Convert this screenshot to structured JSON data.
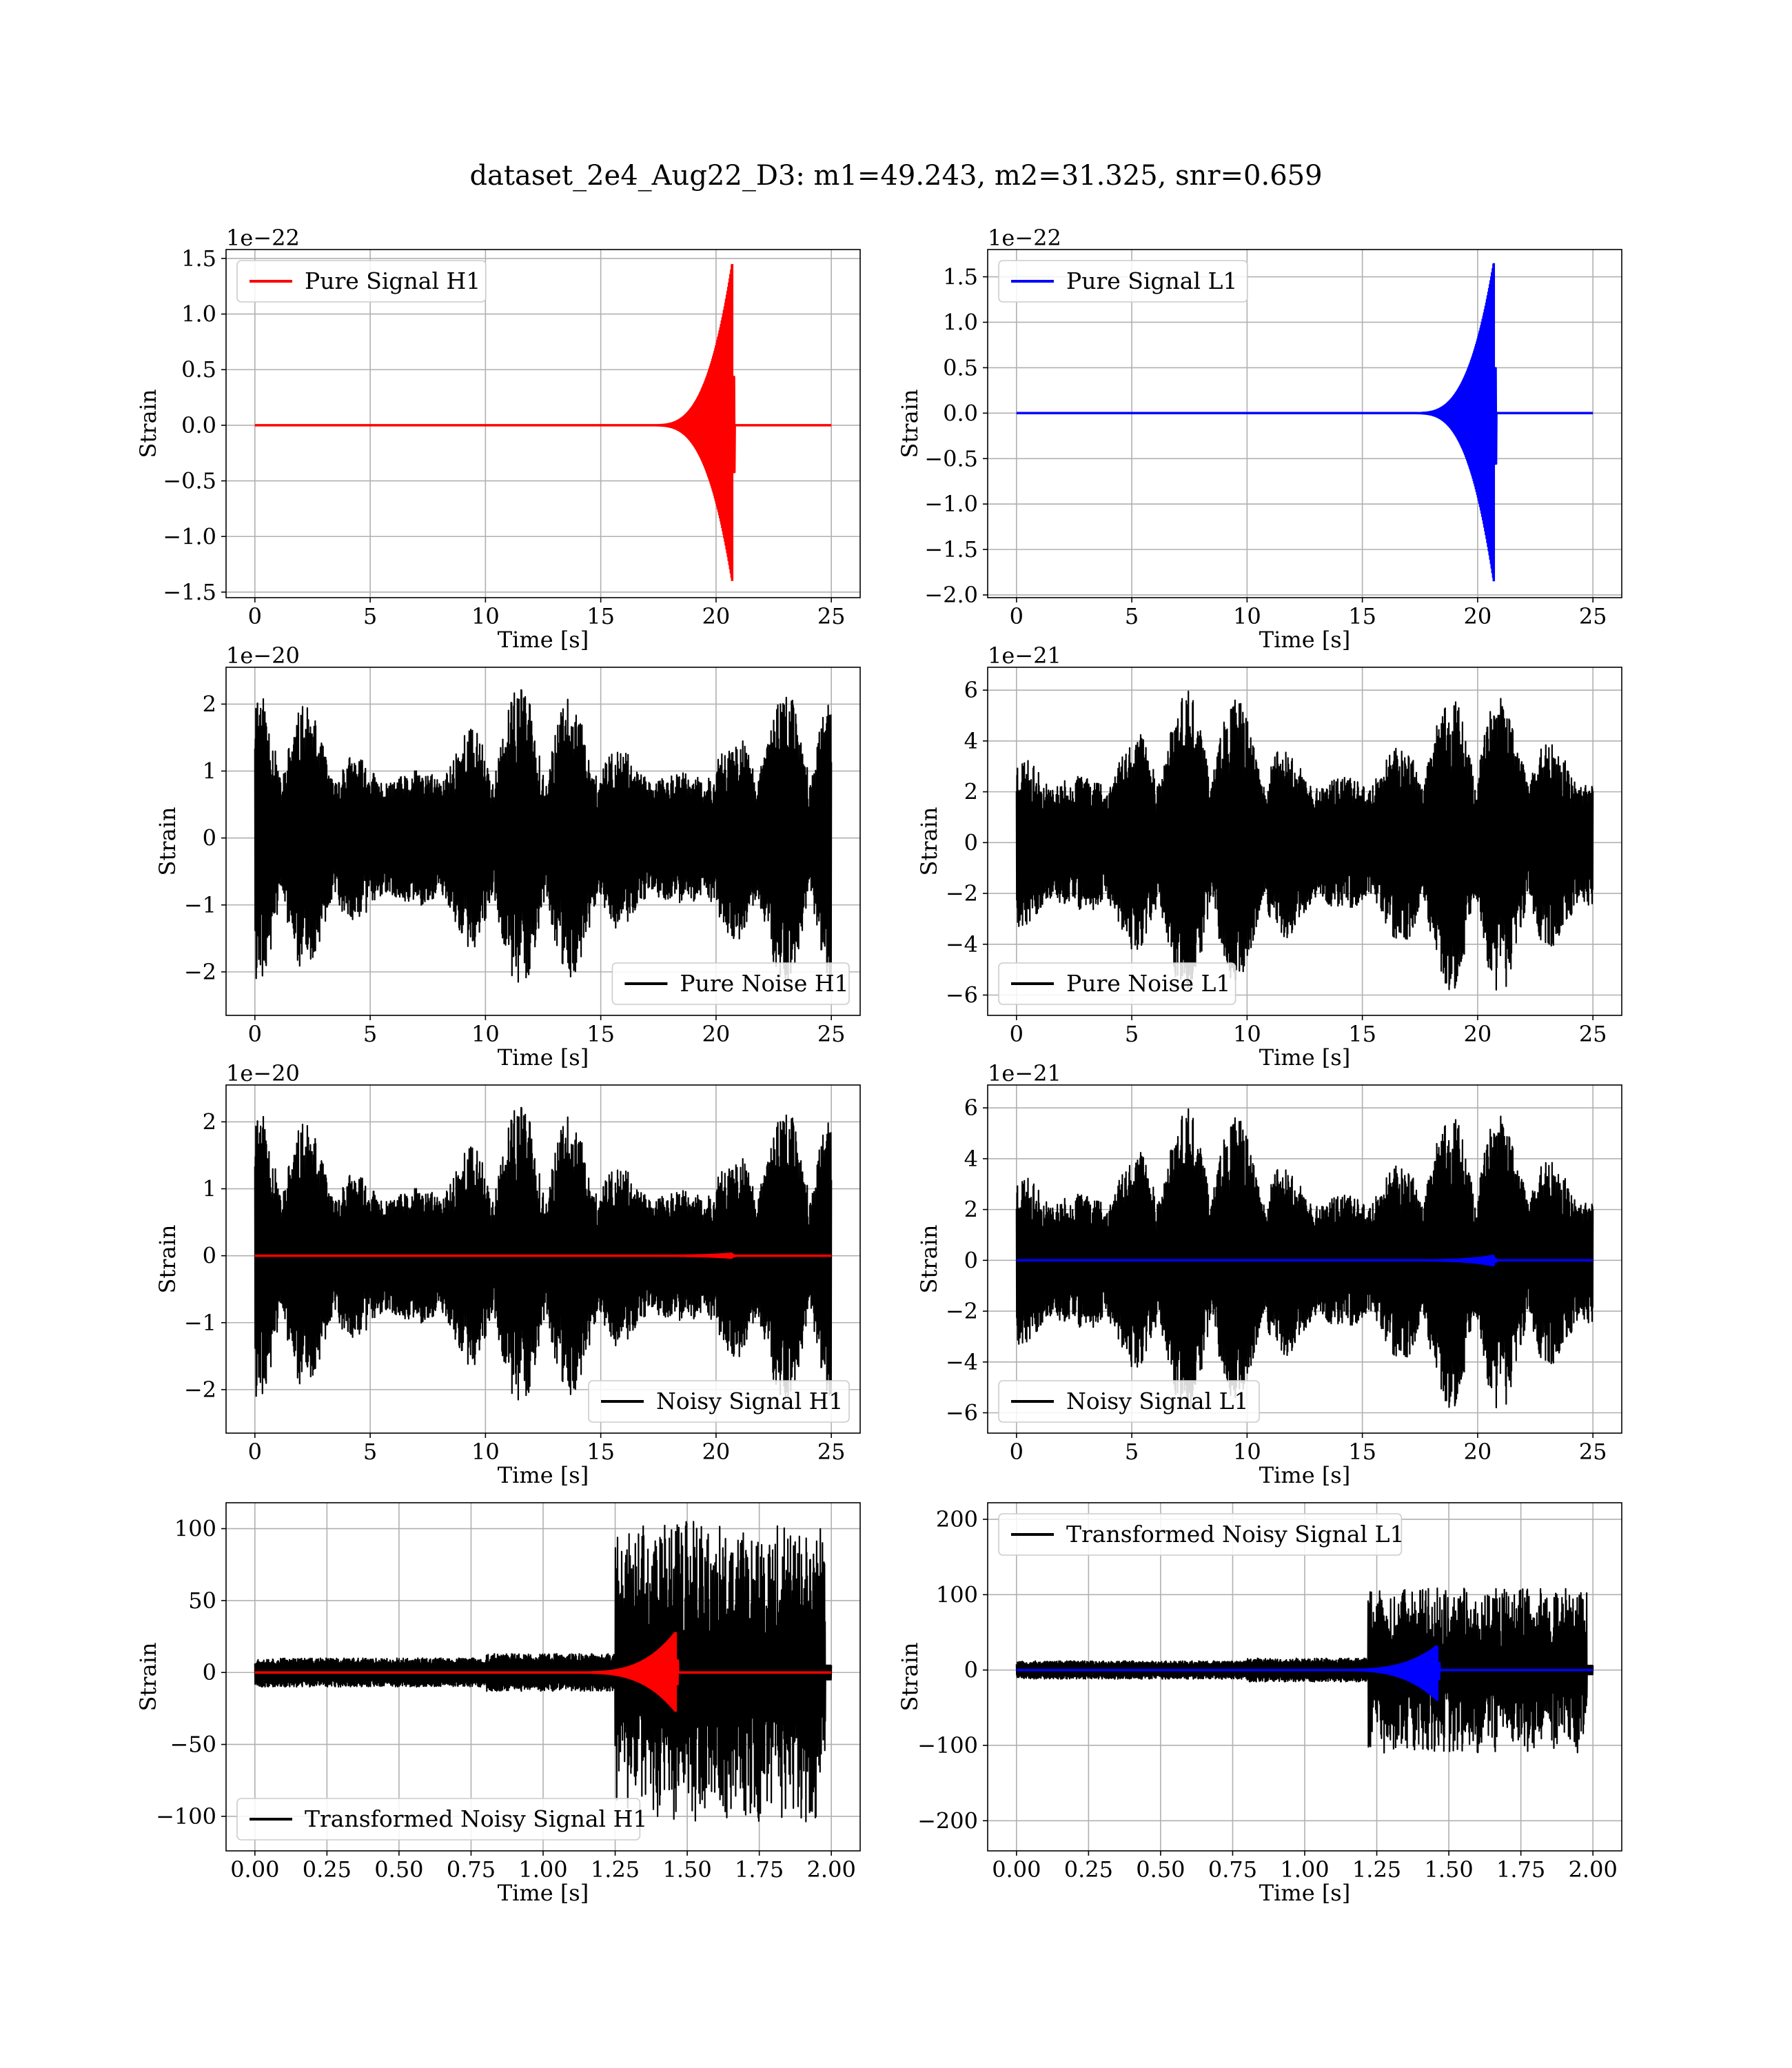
{
  "figure_title": "dataset_2e4_Aug22_D3: m1=49.243, m2=31.325, snr=0.659",
  "colors": {
    "h1_signal": "#ff0000",
    "l1_signal": "#0000ff",
    "noise": "#000000",
    "grid": "#b0b0b0"
  },
  "chart_data": [
    {
      "id": "pure-signal-h1",
      "type": "line",
      "xlabel": "Time [s]",
      "ylabel": "Strain",
      "offset": "1e−22",
      "xlim": [
        -1.25,
        26.25
      ],
      "ylim": [
        -1.55,
        1.58
      ],
      "xticks": [
        0,
        5,
        10,
        15,
        20,
        25
      ],
      "xtick_labels": [
        "0",
        "5",
        "10",
        "15",
        "20",
        "25"
      ],
      "yticks": [
        -1.5,
        -1.0,
        -0.5,
        0.0,
        0.5,
        1.0,
        1.5
      ],
      "ytick_labels": [
        "−1.5",
        "−1.0",
        "−0.5",
        "0.0",
        "0.5",
        "1.0",
        "1.5"
      ],
      "legend": "upper-left",
      "series": [
        {
          "name": "Pure Signal H1",
          "color": "#ff0000",
          "kind": "chirp",
          "x_start": 0,
          "x_end": 25,
          "merger_x": 20.7,
          "peak_max": 1.45,
          "peak_min": -1.4
        }
      ]
    },
    {
      "id": "pure-signal-l1",
      "type": "line",
      "xlabel": "Time [s]",
      "ylabel": "Strain",
      "offset": "1e−22",
      "xlim": [
        -1.25,
        26.25
      ],
      "ylim": [
        -2.03,
        1.8
      ],
      "xticks": [
        0,
        5,
        10,
        15,
        20,
        25
      ],
      "xtick_labels": [
        "0",
        "5",
        "10",
        "15",
        "20",
        "25"
      ],
      "yticks": [
        -2.0,
        -1.5,
        -1.0,
        -0.5,
        0.0,
        0.5,
        1.0,
        1.5
      ],
      "ytick_labels": [
        "−2.0",
        "−1.5",
        "−1.0",
        "−0.5",
        "0.0",
        "0.5",
        "1.0",
        "1.5"
      ],
      "legend": "upper-left",
      "series": [
        {
          "name": "Pure Signal L1",
          "color": "#0000ff",
          "kind": "chirp",
          "x_start": 0,
          "x_end": 25,
          "merger_x": 20.7,
          "peak_max": 1.65,
          "peak_min": -1.85
        }
      ]
    },
    {
      "id": "pure-noise-h1",
      "type": "line",
      "xlabel": "Time [s]",
      "ylabel": "Strain",
      "offset": "1e−20",
      "xlim": [
        -1.25,
        26.25
      ],
      "ylim": [
        -2.65,
        2.55
      ],
      "xticks": [
        0,
        5,
        10,
        15,
        20,
        25
      ],
      "xtick_labels": [
        "0",
        "5",
        "10",
        "15",
        "20",
        "25"
      ],
      "yticks": [
        -2,
        -1,
        0,
        1,
        2
      ],
      "ytick_labels": [
        "−2",
        "−1",
        "0",
        "1",
        "2"
      ],
      "legend": "lower-right",
      "series": [
        {
          "name": "Pure Noise H1",
          "color": "#000000",
          "kind": "noise",
          "x_start": 0,
          "x_end": 25,
          "amp": 2.3,
          "seed": 11
        }
      ]
    },
    {
      "id": "pure-noise-l1",
      "type": "line",
      "xlabel": "Time [s]",
      "ylabel": "Strain",
      "offset": "1e−21",
      "xlim": [
        -1.25,
        26.25
      ],
      "ylim": [
        -6.8,
        6.9
      ],
      "xticks": [
        0,
        5,
        10,
        15,
        20,
        25
      ],
      "xtick_labels": [
        "0",
        "5",
        "10",
        "15",
        "20",
        "25"
      ],
      "yticks": [
        -6,
        -4,
        -2,
        0,
        2,
        4,
        6
      ],
      "ytick_labels": [
        "−6",
        "−4",
        "−2",
        "0",
        "2",
        "4",
        "6"
      ],
      "legend": "lower-left",
      "series": [
        {
          "name": "Pure Noise L1",
          "color": "#000000",
          "kind": "noise",
          "x_start": 0,
          "x_end": 25,
          "amp": 6.2,
          "seed": 23
        }
      ]
    },
    {
      "id": "noisy-signal-h1",
      "type": "line",
      "xlabel": "Time [s]",
      "ylabel": "Strain",
      "offset": "1e−20",
      "xlim": [
        -1.25,
        26.25
      ],
      "ylim": [
        -2.65,
        2.55
      ],
      "xticks": [
        0,
        5,
        10,
        15,
        20,
        25
      ],
      "xtick_labels": [
        "0",
        "5",
        "10",
        "15",
        "20",
        "25"
      ],
      "yticks": [
        -2,
        -1,
        0,
        1,
        2
      ],
      "ytick_labels": [
        "−2",
        "−1",
        "0",
        "1",
        "2"
      ],
      "legend": "lower-right",
      "series": [
        {
          "name": "Noisy Signal H1",
          "color": "#000000",
          "kind": "noise",
          "x_start": 0,
          "x_end": 25,
          "amp": 2.3,
          "seed": 11
        },
        {
          "color": "#ff0000",
          "kind": "flat",
          "x_start": 0,
          "x_end": 25,
          "merger_x": 20.7,
          "peak_max": 0.03,
          "peak_min": -0.03
        }
      ]
    },
    {
      "id": "noisy-signal-l1",
      "type": "line",
      "xlabel": "Time [s]",
      "ylabel": "Strain",
      "offset": "1e−21",
      "xlim": [
        -1.25,
        26.25
      ],
      "ylim": [
        -6.8,
        6.9
      ],
      "xticks": [
        0,
        5,
        10,
        15,
        20,
        25
      ],
      "xtick_labels": [
        "0",
        "5",
        "10",
        "15",
        "20",
        "25"
      ],
      "yticks": [
        -6,
        -4,
        -2,
        0,
        2,
        4,
        6
      ],
      "ytick_labels": [
        "−6",
        "−4",
        "−2",
        "0",
        "2",
        "4",
        "6"
      ],
      "legend": "lower-left",
      "series": [
        {
          "name": "Noisy Signal L1",
          "color": "#000000",
          "kind": "noise",
          "x_start": 0,
          "x_end": 25,
          "amp": 6.2,
          "seed": 23
        },
        {
          "color": "#0000ff",
          "kind": "flat",
          "x_start": 0,
          "x_end": 25,
          "merger_x": 20.7,
          "peak_max": 0.18,
          "peak_min": -0.2
        }
      ]
    },
    {
      "id": "transformed-h1",
      "type": "line",
      "xlabel": "Time [s]",
      "ylabel": "Strain",
      "offset": "",
      "xlim": [
        -0.1,
        2.1
      ],
      "ylim": [
        -124,
        118
      ],
      "xticks": [
        0,
        0.25,
        0.5,
        0.75,
        1.0,
        1.25,
        1.5,
        1.75,
        2.0
      ],
      "xtick_labels": [
        "0.00",
        "0.25",
        "0.50",
        "0.75",
        "1.00",
        "1.25",
        "1.50",
        "1.75",
        "2.00"
      ],
      "yticks": [
        -100,
        -50,
        0,
        50,
        100
      ],
      "ytick_labels": [
        "−100",
        "−50",
        "0",
        "50",
        "100"
      ],
      "legend": "lower-left",
      "series": [
        {
          "name": "Transformed Noisy Signal H1",
          "color": "#000000",
          "kind": "tnoise",
          "x_start": 0,
          "x_end": 2.0,
          "low_amp": 10,
          "high_amp": 105,
          "rise_x": 1.25,
          "seed": 37
        },
        {
          "color": "#ff0000",
          "kind": "tchirp",
          "x_start": 0,
          "x_end": 2.0,
          "merger_x": 1.46,
          "peak_max": 28,
          "peak_min": -27
        }
      ]
    },
    {
      "id": "transformed-l1",
      "type": "line",
      "xlabel": "Time [s]",
      "ylabel": "Strain",
      "offset": "",
      "xlim": [
        -0.1,
        2.1
      ],
      "ylim": [
        -240,
        222
      ],
      "xticks": [
        0,
        0.25,
        0.5,
        0.75,
        1.0,
        1.25,
        1.5,
        1.75,
        2.0
      ],
      "xtick_labels": [
        "0.00",
        "0.25",
        "0.50",
        "0.75",
        "1.00",
        "1.25",
        "1.50",
        "1.75",
        "2.00"
      ],
      "yticks": [
        -200,
        -100,
        0,
        100,
        200
      ],
      "ytick_labels": [
        "−200",
        "−100",
        "0",
        "100",
        "200"
      ],
      "legend": "upper-left",
      "series": [
        {
          "name": "Transformed Noisy Signal L1",
          "color": "#000000",
          "kind": "tnoise",
          "x_start": 0,
          "x_end": 2.0,
          "low_amp": 12,
          "high_amp": 110,
          "rise_x": 1.22,
          "seed": 53
        },
        {
          "color": "#0000ff",
          "kind": "tchirp",
          "x_start": 0,
          "x_end": 2.0,
          "merger_x": 1.46,
          "peak_max": 32,
          "peak_min": -40
        }
      ]
    }
  ]
}
